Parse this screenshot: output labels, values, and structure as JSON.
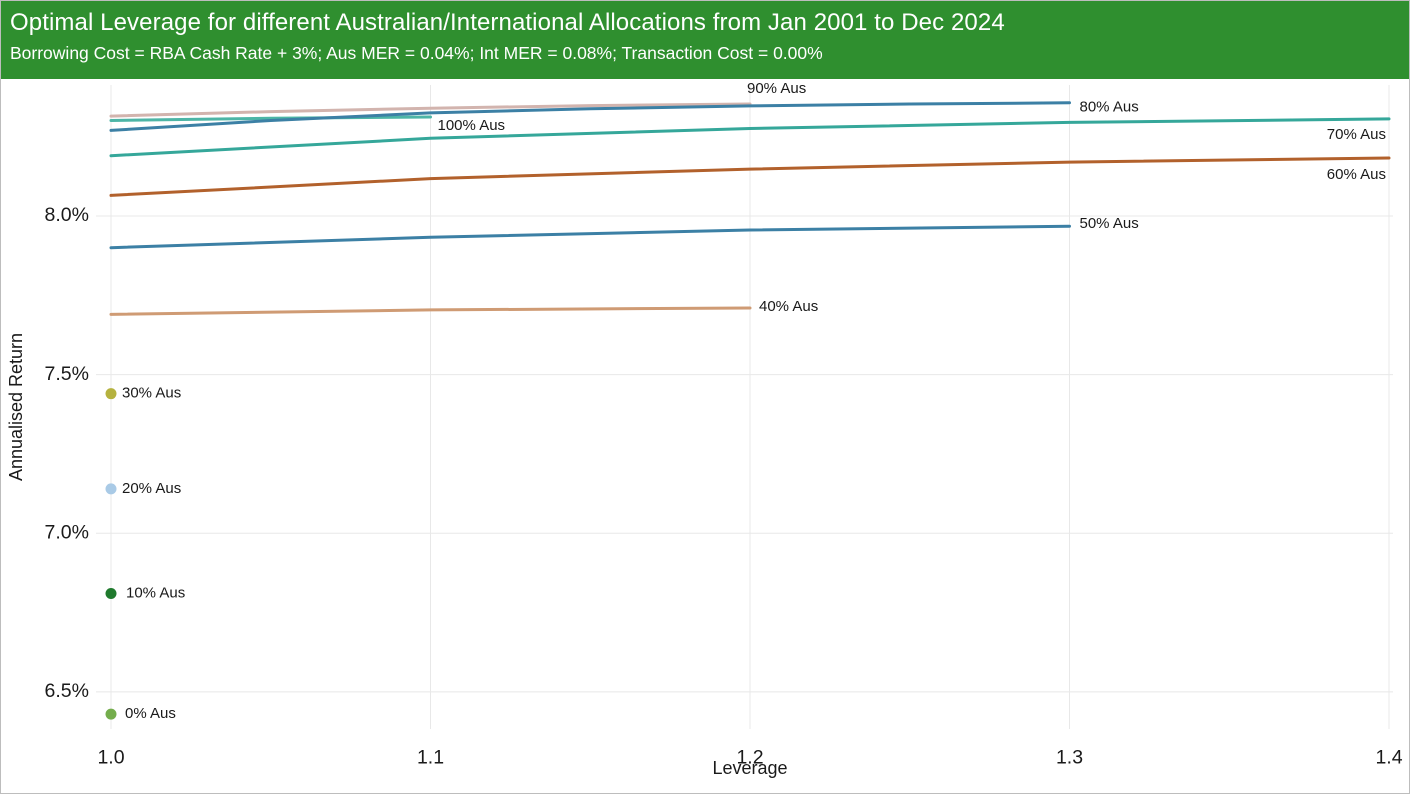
{
  "header": {
    "title": "Optimal Leverage for different Australian/International Allocations from Jan 2001 to Dec 2024",
    "subtitle": "Borrowing Cost = RBA Cash Rate + 3%; Aus MER = 0.04%; Int MER = 0.08%; Transaction Cost = 0.00%",
    "background_color": "#2f8f2f",
    "text_color": "#ffffff"
  },
  "chart_data": {
    "type": "line",
    "title": "Optimal Leverage for different Australian/International Allocations from Jan 2001 to Dec 2024",
    "subtitle": "Borrowing Cost = RBA Cash Rate + 3%; Aus MER = 0.04%; Int MER = 0.08%; Transaction Cost = 0.00%",
    "xlabel": "Leverage",
    "ylabel": "Annualised Return",
    "units": "percent annualised return",
    "xlim": [
      1.0,
      1.4
    ],
    "ylim": [
      6.383,
      8.413
    ],
    "grid": true,
    "gridline_color": "#e8e8e8",
    "legend": "inline labels at end of each line",
    "x_ticks": [
      {
        "value": 1.0,
        "label": "1.0"
      },
      {
        "value": 1.1,
        "label": "1.1"
      },
      {
        "value": 1.2,
        "label": "1.2"
      },
      {
        "value": 1.3,
        "label": "1.3"
      },
      {
        "value": 1.4,
        "label": "1.4"
      }
    ],
    "y_ticks": [
      {
        "value": 8.0,
        "label": "8.0%"
      },
      {
        "value": 7.5,
        "label": "7.5%"
      },
      {
        "value": 7.0,
        "label": "7.0%"
      },
      {
        "value": 6.5,
        "label": "6.5%"
      }
    ],
    "series": [
      {
        "name": "100% Aus",
        "color": "#4db5a6",
        "optimal_leverage": 1.1,
        "return_at_leverage_1": "8.30%",
        "return_at_optimal": "8.31%",
        "points": [
          [
            1.0,
            8.301
          ],
          [
            1.05,
            8.308
          ],
          [
            1.1,
            8.312
          ]
        ],
        "label": {
          "text": "100% Aus",
          "anchor": "start",
          "dx": 7,
          "dy": 9
        }
      },
      {
        "name": "90% Aus",
        "color": "#d2b4ae",
        "optimal_leverage": 1.2,
        "return_at_leverage_1": "8.32%",
        "return_at_optimal": "8.35%",
        "points": [
          [
            1.0,
            8.315
          ],
          [
            1.05,
            8.329
          ],
          [
            1.1,
            8.34
          ],
          [
            1.15,
            8.348
          ],
          [
            1.2,
            8.353
          ]
        ],
        "label": {
          "text": "90% Aus",
          "anchor": "start",
          "dx": -3,
          "dy": -15
        }
      },
      {
        "name": "80% Aus",
        "color": "#3c80a5",
        "optimal_leverage": 1.3,
        "return_at_leverage_1": "8.27%",
        "return_at_optimal": "8.36%",
        "points": [
          [
            1.0,
            8.27
          ],
          [
            1.05,
            8.301
          ],
          [
            1.1,
            8.325
          ],
          [
            1.15,
            8.338
          ],
          [
            1.2,
            8.347
          ],
          [
            1.25,
            8.353
          ],
          [
            1.3,
            8.357
          ]
        ],
        "label": {
          "text": "80% Aus",
          "anchor": "start",
          "dx": 10,
          "dy": 5
        }
      },
      {
        "name": "70% Aus",
        "color": "#35a79a",
        "optimal_leverage": 1.4,
        "return_at_leverage_1": "8.19%",
        "return_at_optimal": "8.31%",
        "points": [
          [
            1.0,
            8.19
          ],
          [
            1.1,
            8.245
          ],
          [
            1.2,
            8.276
          ],
          [
            1.3,
            8.295
          ],
          [
            1.4,
            8.306
          ]
        ],
        "label": {
          "text": "70% Aus",
          "anchor": "end",
          "dx": -3,
          "dy": 16
        }
      },
      {
        "name": "60% Aus",
        "color": "#b2612c",
        "optimal_leverage": 1.4,
        "return_at_leverage_1": "8.07%",
        "return_at_optimal": "8.18%",
        "points": [
          [
            1.0,
            8.065
          ],
          [
            1.1,
            8.118
          ],
          [
            1.2,
            8.148
          ],
          [
            1.3,
            8.17
          ],
          [
            1.4,
            8.183
          ]
        ],
        "label": {
          "text": "60% Aus",
          "anchor": "end",
          "dx": -3,
          "dy": 17
        }
      },
      {
        "name": "50% Aus",
        "color": "#3c80a5",
        "optimal_leverage": 1.3,
        "return_at_leverage_1": "7.90%",
        "return_at_optimal": "7.97%",
        "points": [
          [
            1.0,
            7.9
          ],
          [
            1.1,
            7.933
          ],
          [
            1.2,
            7.956
          ],
          [
            1.3,
            7.968
          ]
        ],
        "label": {
          "text": "50% Aus",
          "anchor": "start",
          "dx": 10,
          "dy": -2
        }
      },
      {
        "name": "40% Aus",
        "color": "#cf9b74",
        "optimal_leverage": 1.2,
        "return_at_leverage_1": "7.69%",
        "return_at_optimal": "7.71%",
        "points": [
          [
            1.0,
            7.69
          ],
          [
            1.1,
            7.704
          ],
          [
            1.2,
            7.71
          ]
        ],
        "label": {
          "text": "40% Aus",
          "anchor": "start",
          "dx": 9,
          "dy": -1
        }
      },
      {
        "name": "30% Aus",
        "color": "#b5b23f",
        "optimal_leverage": 1.0,
        "return_at_leverage_1": "7.44%",
        "return_at_optimal": "7.44%",
        "points": [
          [
            1.0,
            7.44
          ]
        ],
        "label": {
          "text": "30% Aus",
          "anchor": "start",
          "dx": 11,
          "dy": 0
        }
      },
      {
        "name": "20% Aus",
        "color": "#a9cae6",
        "optimal_leverage": 1.0,
        "return_at_leverage_1": "7.14%",
        "return_at_optimal": "7.14%",
        "points": [
          [
            1.0,
            7.14
          ]
        ],
        "label": {
          "text": "20% Aus",
          "anchor": "start",
          "dx": 11,
          "dy": 0
        }
      },
      {
        "name": "10% Aus",
        "color": "#1f7a2d",
        "optimal_leverage": 1.0,
        "return_at_leverage_1": "6.81%",
        "return_at_optimal": "6.81%",
        "points": [
          [
            1.0,
            6.81
          ]
        ],
        "label": {
          "text": "10% Aus",
          "anchor": "start",
          "dx": 15,
          "dy": 0
        }
      },
      {
        "name": "0% Aus",
        "color": "#74ad4c",
        "optimal_leverage": 1.0,
        "return_at_leverage_1": "6.43%",
        "return_at_optimal": "6.43%",
        "points": [
          [
            1.0,
            6.43
          ]
        ],
        "label": {
          "text": "0% Aus",
          "anchor": "start",
          "dx": 14,
          "dy": 0
        }
      }
    ]
  }
}
